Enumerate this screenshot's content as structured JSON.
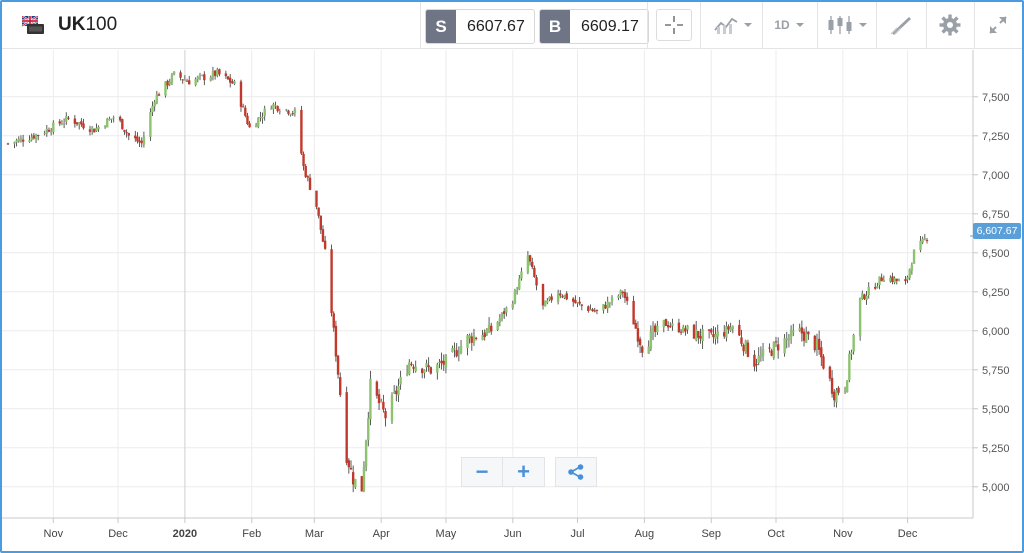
{
  "header": {
    "symbol_bold": "UK",
    "symbol_rest": "100",
    "sell_label": "S",
    "sell_price": "6607.67",
    "buy_label": "B",
    "buy_price": "6609.17",
    "timeframe": "1D"
  },
  "icons": [
    "uk-flag-icon",
    "crosshair-icon",
    "indicators-icon",
    "candlestick-icon",
    "drawing-icon",
    "settings-icon",
    "fullscreen-icon",
    "zoom-out-icon",
    "zoom-in-icon",
    "share-icon"
  ],
  "colors": {
    "up": "#8dc26f",
    "down": "#c0392b",
    "accent": "#4a90d9",
    "last_price_bg": "#5a9fd8"
  },
  "last_price_label": "6,607.67",
  "chart_data": {
    "type": "candlestick",
    "ylim": [
      4800,
      7800
    ],
    "y_ticks": [
      5000,
      5250,
      5500,
      5750,
      6000,
      6250,
      6500,
      6750,
      7000,
      7250,
      7500
    ],
    "y_tick_labels": [
      "5,000",
      "5,250",
      "5,500",
      "5,750",
      "6,000",
      "6,250",
      "6,500",
      "6,750",
      "7,000",
      "7,250",
      "7,500"
    ],
    "x_ticks": [
      {
        "label": "Nov",
        "date": "2019-11-01",
        "bold": false
      },
      {
        "label": "Dec",
        "date": "2019-12-01",
        "bold": false
      },
      {
        "label": "2020",
        "date": "2020-01-01",
        "bold": true
      },
      {
        "label": "Feb",
        "date": "2020-02-01",
        "bold": false
      },
      {
        "label": "Mar",
        "date": "2020-03-01",
        "bold": false
      },
      {
        "label": "Apr",
        "date": "2020-04-01",
        "bold": false
      },
      {
        "label": "May",
        "date": "2020-05-01",
        "bold": false
      },
      {
        "label": "Jun",
        "date": "2020-06-01",
        "bold": false
      },
      {
        "label": "Jul",
        "date": "2020-07-01",
        "bold": false
      },
      {
        "label": "Aug",
        "date": "2020-08-01",
        "bold": false
      },
      {
        "label": "Sep",
        "date": "2020-09-01",
        "bold": false
      },
      {
        "label": "Oct",
        "date": "2020-10-01",
        "bold": false
      },
      {
        "label": "Nov",
        "date": "2020-11-01",
        "bold": false
      },
      {
        "label": "Dec",
        "date": "2020-12-01",
        "bold": false
      }
    ],
    "x_range": [
      "2019-10-11",
      "2020-12-10"
    ],
    "grid": true,
    "last_price": 6607.67,
    "close_path": [
      {
        "date": "2019-10-11",
        "value": 7200
      },
      {
        "date": "2019-10-25",
        "value": 7260
      },
      {
        "date": "2019-11-08",
        "value": 7360
      },
      {
        "date": "2019-11-20",
        "value": 7290
      },
      {
        "date": "2019-11-30",
        "value": 7380
      },
      {
        "date": "2019-12-06",
        "value": 7250
      },
      {
        "date": "2019-12-12",
        "value": 7200
      },
      {
        "date": "2019-12-18",
        "value": 7490
      },
      {
        "date": "2019-12-27",
        "value": 7640
      },
      {
        "date": "2020-01-03",
        "value": 7600
      },
      {
        "date": "2020-01-16",
        "value": 7650
      },
      {
        "date": "2020-01-24",
        "value": 7580
      },
      {
        "date": "2020-01-31",
        "value": 7300
      },
      {
        "date": "2020-02-10",
        "value": 7450
      },
      {
        "date": "2020-02-21",
        "value": 7400
      },
      {
        "date": "2020-02-25",
        "value": 7050
      },
      {
        "date": "2020-03-02",
        "value": 6800
      },
      {
        "date": "2020-03-06",
        "value": 6500
      },
      {
        "date": "2020-03-10",
        "value": 6000
      },
      {
        "date": "2020-03-16",
        "value": 5200
      },
      {
        "date": "2020-03-19",
        "value": 5050
      },
      {
        "date": "2020-03-23",
        "value": 4990
      },
      {
        "date": "2020-03-27",
        "value": 5650
      },
      {
        "date": "2020-04-03",
        "value": 5450
      },
      {
        "date": "2020-04-14",
        "value": 5800
      },
      {
        "date": "2020-04-24",
        "value": 5750
      },
      {
        "date": "2020-05-01",
        "value": 5800
      },
      {
        "date": "2020-05-11",
        "value": 5950
      },
      {
        "date": "2020-05-22",
        "value": 6000
      },
      {
        "date": "2020-06-01",
        "value": 6200
      },
      {
        "date": "2020-06-08",
        "value": 6480
      },
      {
        "date": "2020-06-15",
        "value": 6150
      },
      {
        "date": "2020-06-22",
        "value": 6250
      },
      {
        "date": "2020-07-01",
        "value": 6170
      },
      {
        "date": "2020-07-10",
        "value": 6120
      },
      {
        "date": "2020-07-22",
        "value": 6250
      },
      {
        "date": "2020-07-31",
        "value": 5900
      },
      {
        "date": "2020-08-10",
        "value": 6050
      },
      {
        "date": "2020-08-20",
        "value": 6000
      },
      {
        "date": "2020-09-01",
        "value": 5950
      },
      {
        "date": "2020-09-11",
        "value": 6030
      },
      {
        "date": "2020-09-21",
        "value": 5800
      },
      {
        "date": "2020-10-01",
        "value": 5900
      },
      {
        "date": "2020-10-12",
        "value": 6000
      },
      {
        "date": "2020-10-20",
        "value": 5900
      },
      {
        "date": "2020-10-28",
        "value": 5600
      },
      {
        "date": "2020-11-02",
        "value": 5650
      },
      {
        "date": "2020-11-09",
        "value": 6200
      },
      {
        "date": "2020-11-20",
        "value": 6350
      },
      {
        "date": "2020-11-30",
        "value": 6300
      },
      {
        "date": "2020-12-04",
        "value": 6500
      },
      {
        "date": "2020-12-10",
        "value": 6600
      }
    ]
  }
}
